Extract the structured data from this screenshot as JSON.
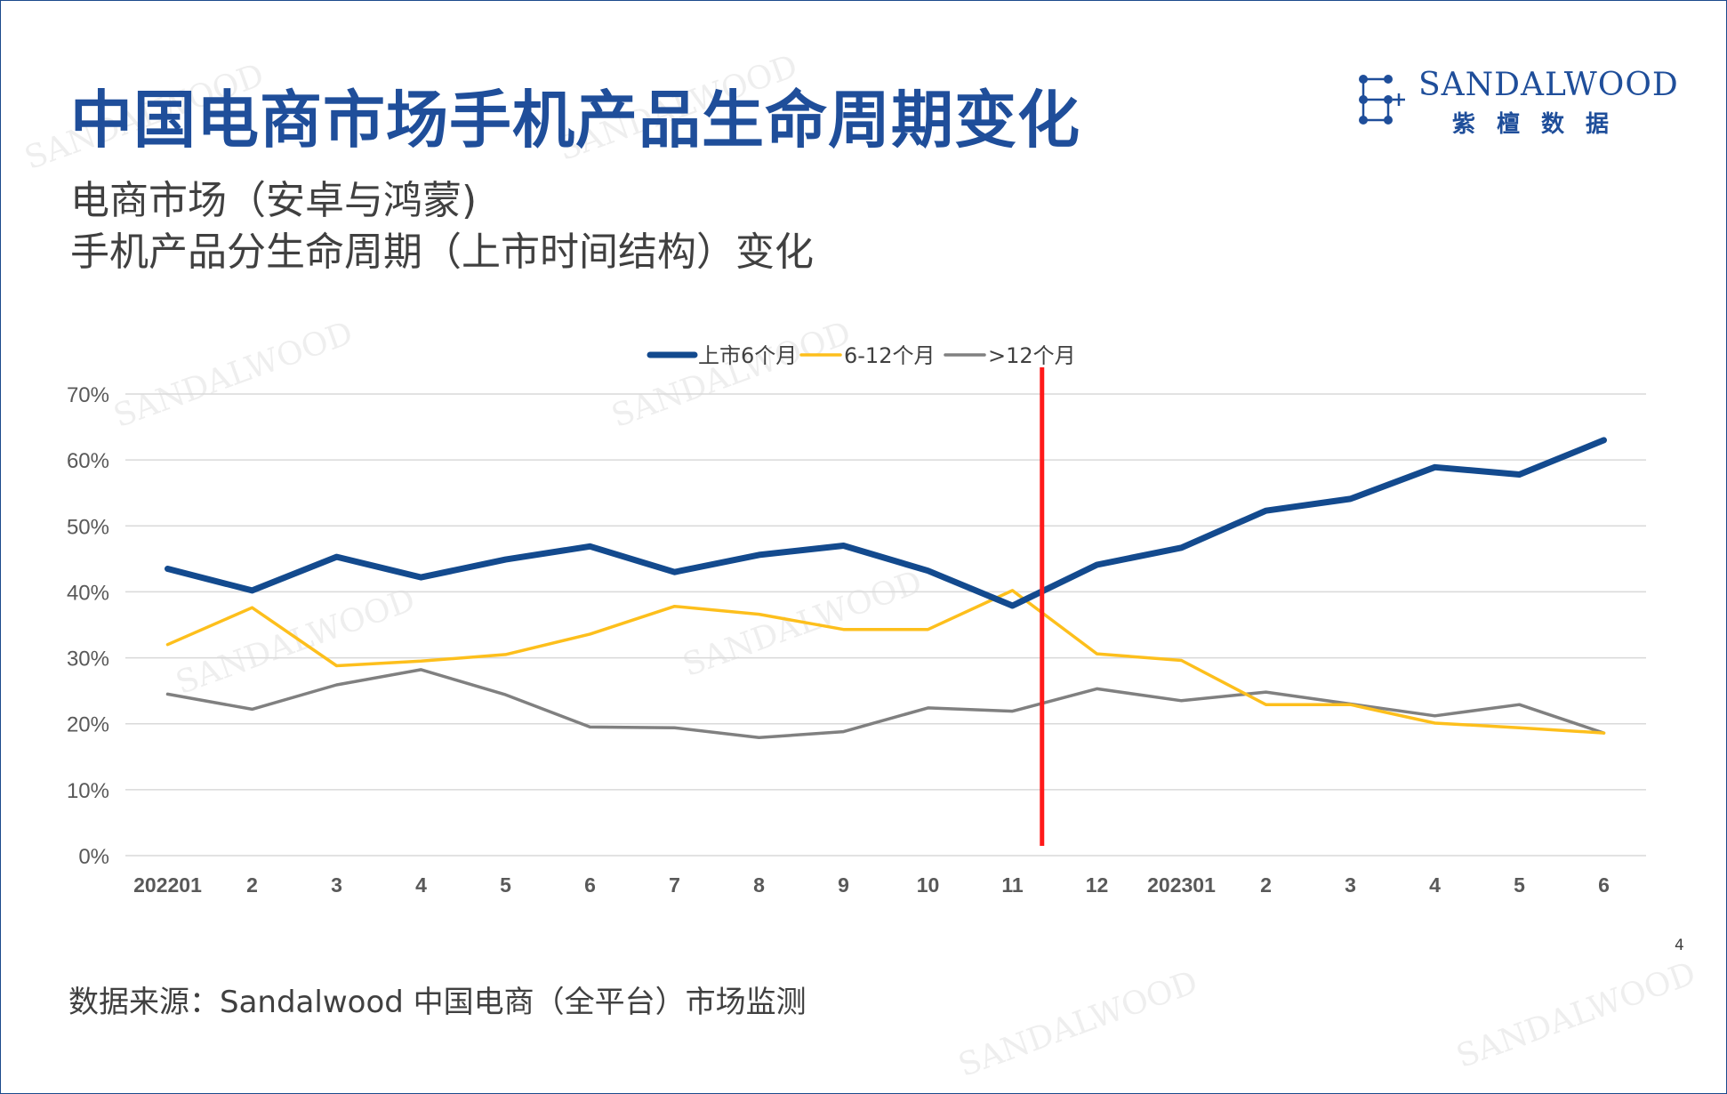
{
  "title": "中国电商市场手机产品生命周期变化",
  "subtitle": {
    "line1": "电商市场（安卓与鸿蒙)",
    "line2": "手机产品分生命周期（上市时间结构）变化"
  },
  "logo": {
    "name_en": "SANDALWOOD",
    "name_cn": "紫檀数据"
  },
  "watermark_text": "SANDALWOOD",
  "source": "数据来源：Sandalwood 中国电商（全平台）市场监测",
  "page_number": "4",
  "colors": {
    "title": "#1f4e9a",
    "series1": "#134a8e",
    "series2": "#fdbf1c",
    "series3": "#808080",
    "marker": "#ff1a1a",
    "grid": "#d9d9d9"
  },
  "chart_data": {
    "type": "line",
    "categories": [
      "202201",
      "2",
      "3",
      "4",
      "5",
      "6",
      "7",
      "8",
      "9",
      "10",
      "11",
      "12",
      "202301",
      "2",
      "3",
      "4",
      "5",
      "6"
    ],
    "series": [
      {
        "name": "上市6个月",
        "values": [
          43.5,
          40.2,
          45.3,
          42.2,
          44.9,
          46.9,
          43.0,
          45.6,
          47.0,
          43.2,
          37.9,
          44.1,
          46.7,
          52.3,
          54.1,
          58.9,
          57.8,
          63.0
        ]
      },
      {
        "name": "6-12个月",
        "values": [
          32.0,
          37.6,
          28.8,
          29.5,
          30.5,
          33.6,
          37.8,
          36.6,
          34.3,
          34.3,
          40.2,
          30.6,
          29.6,
          22.9,
          22.9,
          20.1,
          19.4,
          18.6
        ]
      },
      {
        "name": ">12个月",
        "values": [
          24.5,
          22.2,
          25.9,
          28.2,
          24.4,
          19.5,
          19.4,
          17.9,
          18.8,
          22.4,
          21.9,
          25.3,
          23.5,
          24.8,
          23.0,
          21.2,
          22.9,
          18.6
        ]
      }
    ],
    "y_ticks": [
      "0%",
      "10%",
      "20%",
      "30%",
      "40%",
      "50%",
      "60%",
      "70%"
    ],
    "ylim": [
      0,
      70
    ],
    "grid": true,
    "legend_position": "top-center",
    "marker_line_after_category": "11"
  }
}
